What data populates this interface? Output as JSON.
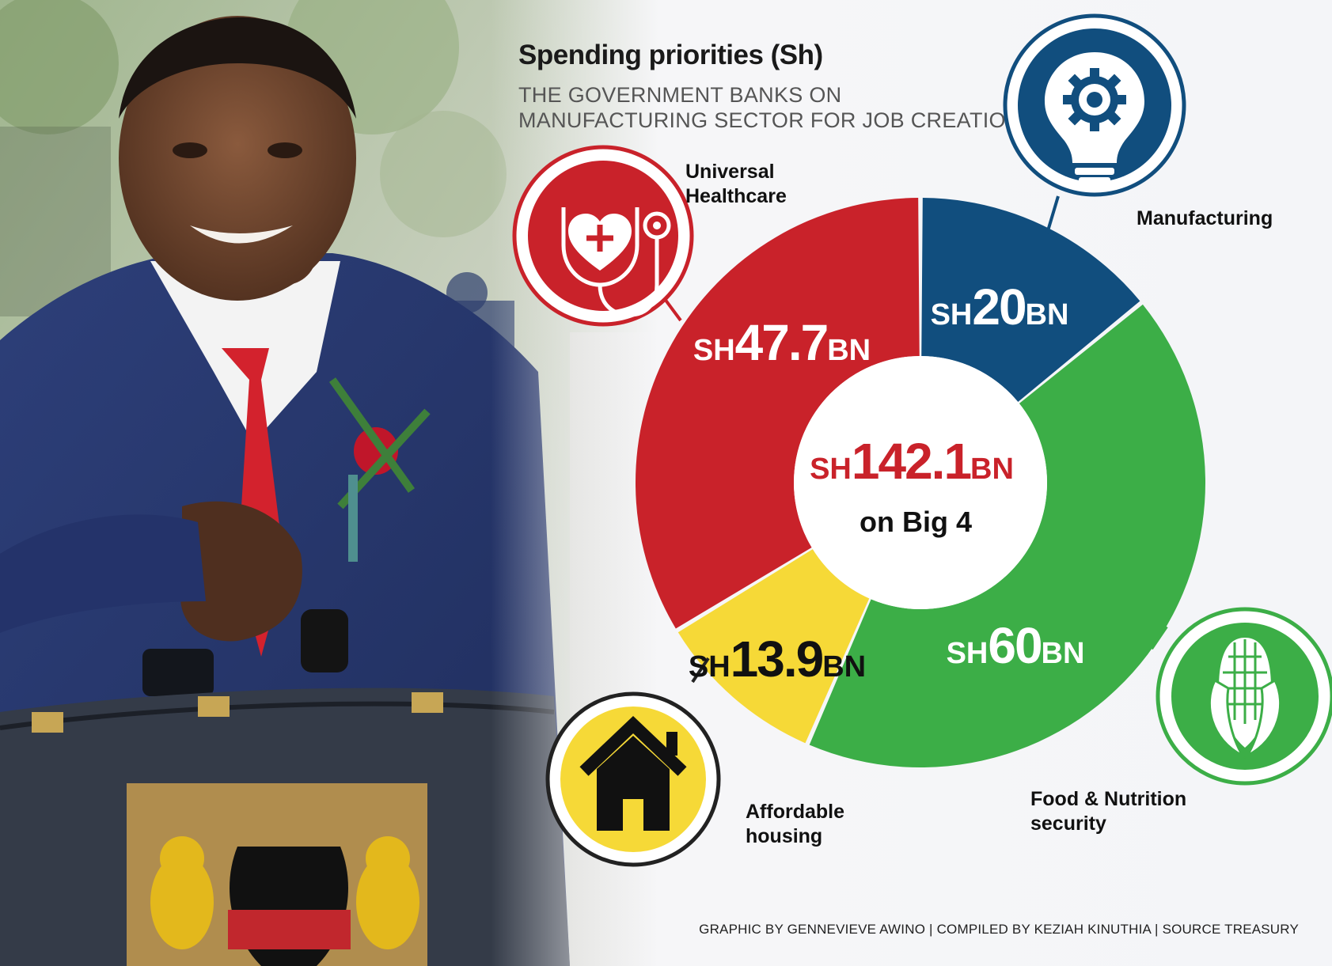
{
  "title": "Spending priorities (Sh)",
  "subtitle": "THE GOVERNMENT BANKS ON MANUFACTURING SECTOR FOR JOB CREATION",
  "credit": "GRAPHIC BY GENNEVIEVE AWINO | COMPILED BY KEZIAH KINUTHIA | SOURCE TREASURY",
  "center": {
    "prefix": "SH",
    "value": "142.1",
    "suffix": "BN",
    "caption": "on Big 4"
  },
  "chart_data": {
    "type": "pie",
    "title": "Spending priorities (Sh)",
    "subtitle": "THE GOVERNMENT BANKS ON MANUFACTURING SECTOR FOR JOB CREATION",
    "unit": "SH BN",
    "total": 142.1,
    "slices": [
      {
        "label": "Manufacturing",
        "value": 20,
        "display": "20",
        "color": "#114e7e",
        "icon": "lightbulb-gear-icon"
      },
      {
        "label": "Food & Nutrition security",
        "value": 60,
        "display": "60",
        "color": "#3cae47",
        "icon": "corn-icon"
      },
      {
        "label": "Affordable housing",
        "value": 13.9,
        "display": "13.9",
        "color": "#f6d937",
        "icon": "house-icon"
      },
      {
        "label": "Universal Healthcare",
        "value": 47.7,
        "display": "47.7",
        "color": "#c9222a",
        "icon": "stethoscope-heart-icon"
      }
    ]
  },
  "labels": {
    "manufacturing": "Manufacturing",
    "food": "Food & Nutrition\nsecurity",
    "housing": "Affordable\nhousing",
    "healthcare": "Universal\nHealthcare"
  },
  "colors": {
    "center_text": "#c9222a",
    "red": "#c9222a",
    "blue": "#114e7e",
    "green": "#3cae47",
    "yellow": "#f6d937"
  }
}
